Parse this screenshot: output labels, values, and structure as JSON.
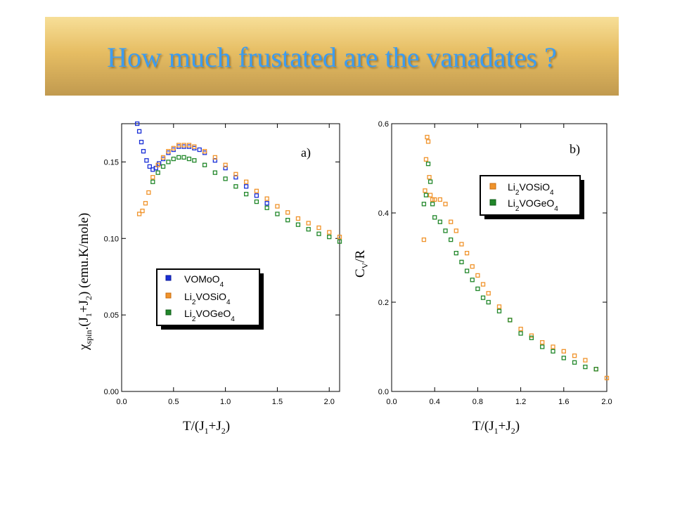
{
  "slide": {
    "title": "How much frustated are the vanadates ?"
  },
  "colors": {
    "blue": "#1a2fd6",
    "orange": "#f0932b",
    "green": "#21872a",
    "title": "#3c9cf0"
  },
  "chart_data": [
    {
      "type": "scatter",
      "panel_label": "a)",
      "xlabel": "T/(J1+J2)",
      "ylabel": "χspin.(J1+J2) (emu.K/mole)",
      "xlim": [
        0.0,
        2.1
      ],
      "ylim": [
        0.0,
        0.175
      ],
      "xticks": [
        "0.0",
        "0.5",
        "1.0",
        "1.5",
        "2.0"
      ],
      "yticks": [
        "0.00",
        "0.05",
        "0.10",
        "0.15"
      ],
      "legend_position": "middle-left",
      "series": [
        {
          "name": "VOMoO4",
          "color": "blue",
          "x": [
            0.15,
            0.17,
            0.19,
            0.21,
            0.24,
            0.27,
            0.3,
            0.33,
            0.36,
            0.4,
            0.45,
            0.5,
            0.55,
            0.6,
            0.65,
            0.7,
            0.75,
            0.8,
            0.9,
            1.0,
            1.1,
            1.2,
            1.3,
            1.4
          ],
          "y": [
            0.175,
            0.17,
            0.163,
            0.157,
            0.151,
            0.147,
            0.145,
            0.146,
            0.149,
            0.152,
            0.156,
            0.158,
            0.16,
            0.16,
            0.16,
            0.159,
            0.158,
            0.156,
            0.151,
            0.146,
            0.14,
            0.134,
            0.128,
            0.123
          ]
        },
        {
          "name": "Li2VOSiO4",
          "color": "orange",
          "x": [
            0.17,
            0.2,
            0.23,
            0.26,
            0.3,
            0.35,
            0.4,
            0.45,
            0.5,
            0.55,
            0.6,
            0.65,
            0.7,
            0.8,
            0.9,
            1.0,
            1.1,
            1.2,
            1.3,
            1.4,
            1.5,
            1.6,
            1.7,
            1.8,
            1.9,
            2.0,
            2.1
          ],
          "y": [
            0.116,
            0.118,
            0.123,
            0.13,
            0.14,
            0.148,
            0.153,
            0.157,
            0.159,
            0.161,
            0.161,
            0.161,
            0.16,
            0.157,
            0.153,
            0.148,
            0.142,
            0.137,
            0.131,
            0.126,
            0.121,
            0.117,
            0.113,
            0.11,
            0.107,
            0.104,
            0.101
          ]
        },
        {
          "name": "Li2VOGeO4",
          "color": "green",
          "x": [
            0.3,
            0.35,
            0.4,
            0.45,
            0.5,
            0.55,
            0.6,
            0.65,
            0.7,
            0.8,
            0.9,
            1.0,
            1.1,
            1.2,
            1.3,
            1.4,
            1.5,
            1.6,
            1.7,
            1.8,
            1.9,
            2.0,
            2.1
          ],
          "y": [
            0.137,
            0.143,
            0.147,
            0.15,
            0.152,
            0.153,
            0.153,
            0.152,
            0.151,
            0.148,
            0.143,
            0.139,
            0.134,
            0.129,
            0.124,
            0.12,
            0.116,
            0.112,
            0.109,
            0.106,
            0.103,
            0.101,
            0.098
          ]
        }
      ]
    },
    {
      "type": "scatter",
      "panel_label": "b)",
      "xlabel": "T/(J1+J2)",
      "ylabel": "CV/R",
      "xlim": [
        0.0,
        2.0
      ],
      "ylim": [
        0.0,
        0.6
      ],
      "xticks": [
        "0.0",
        "0.4",
        "0.8",
        "1.2",
        "1.6",
        "2.0"
      ],
      "yticks": [
        "0.0",
        "0.2",
        "0.4",
        "0.6"
      ],
      "legend_position": "top-right",
      "series": [
        {
          "name": "Li2VOSiO4",
          "color": "orange",
          "x": [
            0.3,
            0.31,
            0.32,
            0.33,
            0.34,
            0.35,
            0.36,
            0.38,
            0.4,
            0.45,
            0.5,
            0.55,
            0.6,
            0.65,
            0.7,
            0.75,
            0.8,
            0.85,
            0.9,
            1.0,
            1.1,
            1.2,
            1.3,
            1.4,
            1.5,
            1.6,
            1.7,
            1.8,
            1.9,
            2.0
          ],
          "y": [
            0.34,
            0.45,
            0.52,
            0.57,
            0.56,
            0.48,
            0.44,
            0.43,
            0.43,
            0.43,
            0.42,
            0.38,
            0.36,
            0.33,
            0.31,
            0.28,
            0.26,
            0.24,
            0.22,
            0.19,
            0.16,
            0.14,
            0.125,
            0.11,
            0.1,
            0.09,
            0.08,
            0.07,
            0.05,
            0.03
          ]
        },
        {
          "name": "Li2VOGeO4",
          "color": "green",
          "x": [
            0.3,
            0.32,
            0.34,
            0.36,
            0.38,
            0.4,
            0.45,
            0.5,
            0.55,
            0.6,
            0.65,
            0.7,
            0.75,
            0.8,
            0.85,
            0.9,
            1.0,
            1.1,
            1.2,
            1.3,
            1.4,
            1.5,
            1.6,
            1.7,
            1.8,
            1.9
          ],
          "y": [
            0.42,
            0.44,
            0.51,
            0.47,
            0.42,
            0.39,
            0.38,
            0.36,
            0.34,
            0.31,
            0.29,
            0.27,
            0.25,
            0.23,
            0.21,
            0.2,
            0.18,
            0.16,
            0.13,
            0.12,
            0.1,
            0.09,
            0.075,
            0.065,
            0.055,
            0.05
          ]
        }
      ]
    }
  ]
}
